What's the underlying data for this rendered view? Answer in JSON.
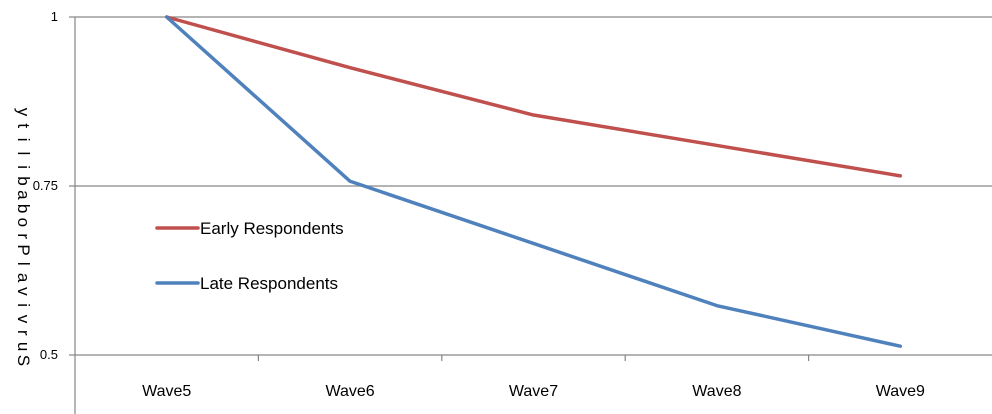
{
  "chart_data": {
    "type": "line",
    "title": "",
    "xlabel": "",
    "ylabel": "Survival Probability",
    "categories": [
      "Wave5",
      "Wave6",
      "Wave7",
      "Wave8",
      "Wave9"
    ],
    "ylim": [
      0.5,
      1
    ],
    "yticks": [
      {
        "value": 1,
        "label": "1"
      },
      {
        "value": 0.75,
        "label": "0.75"
      },
      {
        "value": 0.5,
        "label": "0.5"
      }
    ],
    "grid": "horizontal",
    "legend_position": "left",
    "series": [
      {
        "name": "Early Respondents",
        "color": "#C0504D",
        "values": [
          1,
          0.925,
          0.855,
          0.81,
          0.765
        ]
      },
      {
        "name": "Late Respondents",
        "color": "#4F81BD",
        "values": [
          1,
          0.757,
          0.665,
          0.573,
          0.513
        ]
      }
    ]
  }
}
